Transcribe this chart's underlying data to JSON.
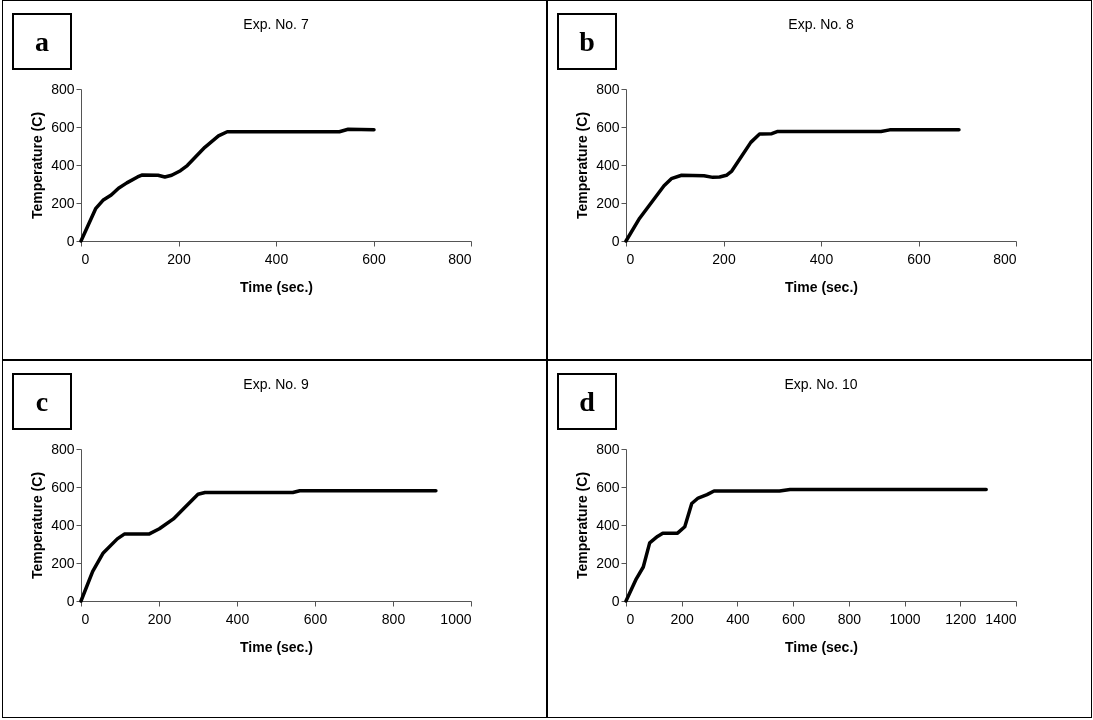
{
  "chart_data": [
    {
      "type": "line",
      "title": "Exp. No. 7",
      "xlabel": "Time (sec.)",
      "ylabel": "Temperature (C)",
      "annotations": [
        "a"
      ],
      "grid": false,
      "line_style": "solid",
      "xlim": [
        0,
        800
      ],
      "xticks": [
        0,
        200,
        400,
        600,
        800
      ],
      "ylim": [
        0,
        800
      ],
      "yticks": [
        0,
        200,
        400,
        600,
        800
      ],
      "x": [
        0,
        30,
        45,
        62,
        77,
        94,
        116,
        126,
        158,
        172,
        186,
        204,
        218,
        254,
        282,
        300,
        530,
        548,
        601
      ],
      "series": [
        {
          "color": "#000000",
          "values": [
            0,
            170,
            214,
            242,
            278,
            306,
            337,
            348,
            346,
            337,
            346,
            370,
            397,
            493,
            553,
            575,
            575,
            588,
            586
          ]
        }
      ]
    },
    {
      "type": "line",
      "title": "Exp. No. 8",
      "xlabel": "Time (sec.)",
      "ylabel": "Temperature (C)",
      "annotations": [
        "b"
      ],
      "grid": false,
      "line_style": "solid",
      "xlim": [
        0,
        800
      ],
      "xticks": [
        0,
        200,
        400,
        600,
        800
      ],
      "ylim": [
        0,
        800
      ],
      "yticks": [
        0,
        200,
        400,
        600,
        800
      ],
      "x": [
        0,
        28,
        78,
        93,
        114,
        160,
        178,
        192,
        206,
        217,
        256,
        274,
        299,
        310,
        523,
        541,
        683
      ],
      "series": [
        {
          "color": "#000000",
          "values": [
            0,
            120,
            291,
            328,
            346,
            343,
            335,
            337,
            346,
            368,
            519,
            563,
            565,
            576,
            576,
            585,
            585
          ]
        }
      ]
    },
    {
      "type": "line",
      "title": "Exp. No. 9",
      "xlabel": "Time (sec.)",
      "ylabel": "Temperature (C)",
      "annotations": [
        "c"
      ],
      "grid": false,
      "line_style": "solid",
      "xlim": [
        0,
        1000
      ],
      "xticks": [
        0,
        200,
        400,
        600,
        800,
        1000
      ],
      "ylim": [
        0,
        800
      ],
      "yticks": [
        0,
        200,
        400,
        600,
        800
      ],
      "x": [
        0,
        30,
        57,
        93,
        111,
        174,
        201,
        237,
        300,
        318,
        543,
        561,
        910
      ],
      "series": [
        {
          "color": "#000000",
          "values": [
            0,
            156,
            253,
            327,
            352,
            352,
            380,
            432,
            562,
            571,
            571,
            580,
            580
          ]
        }
      ]
    },
    {
      "type": "line",
      "title": "Exp. No. 10",
      "xlabel": "Time (sec.)",
      "ylabel": "Temperature (C)",
      "annotations": [
        "d"
      ],
      "grid": false,
      "line_style": "solid",
      "xlim": [
        0,
        1400
      ],
      "xticks": [
        0,
        200,
        400,
        600,
        800,
        1000,
        1200,
        1400
      ],
      "ylim": [
        0,
        800
      ],
      "yticks": [
        0,
        200,
        400,
        600,
        800
      ],
      "x": [
        0,
        37,
        62,
        85,
        113,
        132,
        185,
        211,
        236,
        259,
        291,
        316,
        551,
        589,
        1293
      ],
      "series": [
        {
          "color": "#000000",
          "values": [
            0,
            117,
            179,
            306,
            340,
            357,
            357,
            391,
            513,
            542,
            560,
            579,
            579,
            587,
            587
          ]
        }
      ]
    }
  ]
}
